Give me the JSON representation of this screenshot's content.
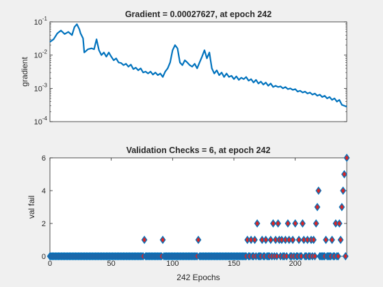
{
  "chart_data": [
    {
      "type": "line",
      "title": "Gradient = 0.00027627, at epoch 242",
      "xlabel": "",
      "ylabel": "gradient",
      "yscale": "log",
      "xlim": [
        0,
        242
      ],
      "ylim": [
        0.0001,
        0.1
      ],
      "ytick_labels": [
        "10^-4",
        "10^-3",
        "10^-2",
        "10^-1"
      ],
      "color": "#0072bd",
      "x": [
        0,
        3,
        6,
        9,
        12,
        15,
        18,
        20,
        22,
        24,
        25,
        27,
        28,
        31,
        34,
        36,
        38,
        40,
        42,
        44,
        46,
        48,
        50,
        52,
        54,
        56,
        58,
        60,
        62,
        64,
        66,
        68,
        70,
        72,
        74,
        76,
        78,
        80,
        82,
        84,
        86,
        88,
        90,
        92,
        94,
        96,
        98,
        100,
        102,
        104,
        106,
        108,
        110,
        112,
        114,
        116,
        118,
        120,
        122,
        124,
        126,
        128,
        130,
        132,
        134,
        136,
        138,
        140,
        142,
        144,
        146,
        148,
        150,
        152,
        154,
        156,
        158,
        160,
        162,
        164,
        166,
        168,
        170,
        172,
        174,
        176,
        178,
        180,
        182,
        184,
        186,
        188,
        190,
        192,
        194,
        196,
        198,
        200,
        202,
        204,
        206,
        208,
        210,
        212,
        214,
        216,
        218,
        220,
        222,
        224,
        226,
        228,
        230,
        232,
        234,
        236,
        238,
        240,
        242
      ],
      "y": [
        0.025,
        0.03,
        0.045,
        0.055,
        0.043,
        0.05,
        0.04,
        0.07,
        0.085,
        0.06,
        0.045,
        0.032,
        0.012,
        0.015,
        0.016,
        0.015,
        0.03,
        0.014,
        0.01,
        0.012,
        0.009,
        0.012,
        0.009,
        0.007,
        0.008,
        0.006,
        0.0058,
        0.005,
        0.0055,
        0.0045,
        0.0052,
        0.0038,
        0.0042,
        0.0035,
        0.004,
        0.003,
        0.0032,
        0.0028,
        0.0032,
        0.0026,
        0.003,
        0.0025,
        0.0028,
        0.0022,
        0.0032,
        0.004,
        0.006,
        0.014,
        0.02,
        0.016,
        0.006,
        0.005,
        0.007,
        0.006,
        0.005,
        0.0045,
        0.0055,
        0.004,
        0.006,
        0.009,
        0.014,
        0.008,
        0.012,
        0.004,
        0.0028,
        0.0035,
        0.0025,
        0.003,
        0.0022,
        0.0028,
        0.0022,
        0.0024,
        0.0019,
        0.0023,
        0.0018,
        0.0021,
        0.0019,
        0.0022,
        0.0017,
        0.0019,
        0.0015,
        0.0018,
        0.0014,
        0.0016,
        0.0013,
        0.0015,
        0.0012,
        0.0014,
        0.0011,
        0.0012,
        0.0011,
        0.00115,
        0.001,
        0.0011,
        0.00095,
        0.001,
        0.0009,
        0.00095,
        0.0008,
        0.00085,
        0.00075,
        0.0008,
        0.0007,
        0.00075,
        0.00065,
        0.0007,
        0.0006,
        0.00065,
        0.00055,
        0.0006,
        0.0005,
        0.00055,
        0.00045,
        0.0005,
        0.0004,
        0.00045,
        0.00032,
        0.0003,
        0.00028
      ]
    },
    {
      "type": "scatter",
      "title": "Validation Checks = 6, at epoch 242",
      "xlabel": "242 Epochs",
      "ylabel": "val fail",
      "xlim": [
        0,
        242
      ],
      "ylim": [
        0,
        6
      ],
      "xticks": [
        0,
        50,
        100,
        150,
        200
      ],
      "yticks": [
        0,
        2,
        4,
        6
      ],
      "marker": "diamond",
      "marker_edge_color": "#0072bd",
      "marker_face_color": "#d62728",
      "points": [
        [
          77,
          1
        ],
        [
          92,
          1
        ],
        [
          121,
          1
        ],
        [
          161,
          1
        ],
        [
          164,
          1
        ],
        [
          167,
          1
        ],
        [
          169,
          2
        ],
        [
          173,
          1
        ],
        [
          176,
          1
        ],
        [
          180,
          1
        ],
        [
          182,
          2
        ],
        [
          184,
          1
        ],
        [
          186,
          2
        ],
        [
          187,
          1
        ],
        [
          189,
          1
        ],
        [
          192,
          1
        ],
        [
          194,
          2
        ],
        [
          195,
          1
        ],
        [
          198,
          1
        ],
        [
          200,
          2
        ],
        [
          203,
          1
        ],
        [
          206,
          2
        ],
        [
          207,
          1
        ],
        [
          210,
          1
        ],
        [
          213,
          1
        ],
        [
          215,
          1
        ],
        [
          217,
          2
        ],
        [
          218,
          3
        ],
        [
          219,
          4
        ],
        [
          225,
          1
        ],
        [
          230,
          1
        ],
        [
          233,
          2
        ],
        [
          236,
          2
        ],
        [
          237,
          1
        ],
        [
          238,
          3
        ],
        [
          239,
          4
        ],
        [
          240,
          5
        ],
        [
          242,
          6
        ]
      ]
    }
  ]
}
